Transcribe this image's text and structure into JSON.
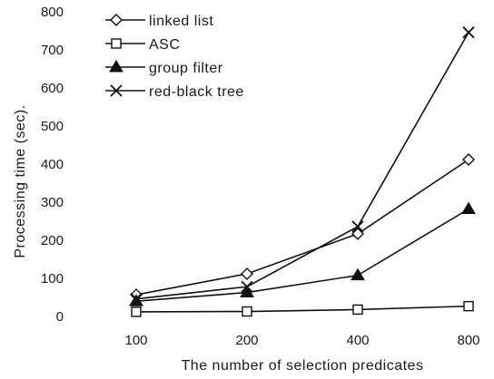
{
  "chart_data": {
    "type": "line",
    "title": "",
    "xlabel": "The number of selection predicates",
    "ylabel": "Processing time (sec).",
    "categories": [
      "100",
      "200",
      "400",
      "800"
    ],
    "ylim": [
      0,
      800
    ],
    "yticks": [
      "0",
      "100",
      "200",
      "300",
      "400",
      "500",
      "600",
      "700",
      "800"
    ],
    "grid": false,
    "legend_position": "top-left",
    "series": [
      {
        "name": "linked list",
        "marker": "diamond-open",
        "values": [
          57,
          112,
          217,
          412
        ]
      },
      {
        "name": "ASC",
        "marker": "square-open",
        "values": [
          12,
          13,
          18,
          27
        ]
      },
      {
        "name": "group filter",
        "marker": "triangle-filled",
        "values": [
          40,
          63,
          108,
          282
        ]
      },
      {
        "name": "red-black tree",
        "marker": "x-cross",
        "values": [
          46,
          78,
          236,
          746
        ]
      }
    ]
  }
}
